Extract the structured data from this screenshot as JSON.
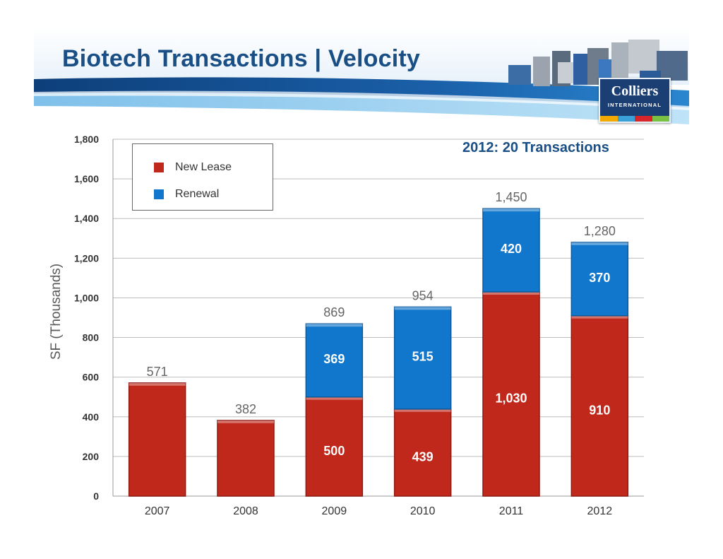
{
  "slide": {
    "title": "Biotech Transactions | Velocity",
    "logo_name": "Colliers",
    "logo_sub": "INTERNATIONAL"
  },
  "chart_data": {
    "type": "bar",
    "stacked": true,
    "categories": [
      "2007",
      "2008",
      "2009",
      "2010",
      "2011",
      "2012"
    ],
    "series": [
      {
        "name": "New Lease",
        "color": "#c0281c",
        "values": [
          571,
          382,
          500,
          439,
          1030,
          910
        ],
        "labels": [
          "",
          "",
          "500",
          "439",
          "1,030",
          "910"
        ]
      },
      {
        "name": "Renewal",
        "color": "#1177cc",
        "values": [
          0,
          0,
          369,
          515,
          420,
          370
        ],
        "labels": [
          "",
          "",
          "369",
          "515",
          "420",
          "370"
        ]
      }
    ],
    "totals": [
      "571",
      "382",
      "869",
      "954",
      "1,450",
      "1,280"
    ],
    "ylabel": "SF (Thousands)",
    "ylim": [
      0,
      1800
    ],
    "yticks": [
      "0",
      "200",
      "400",
      "600",
      "800",
      "1,000",
      "1,200",
      "1,400",
      "1,600",
      "1,800"
    ],
    "ytick_values": [
      0,
      200,
      400,
      600,
      800,
      1000,
      1200,
      1400,
      1600,
      1800
    ],
    "grid": true,
    "legend_position": "top-left",
    "annotation": "2012: 20 Transactions"
  }
}
